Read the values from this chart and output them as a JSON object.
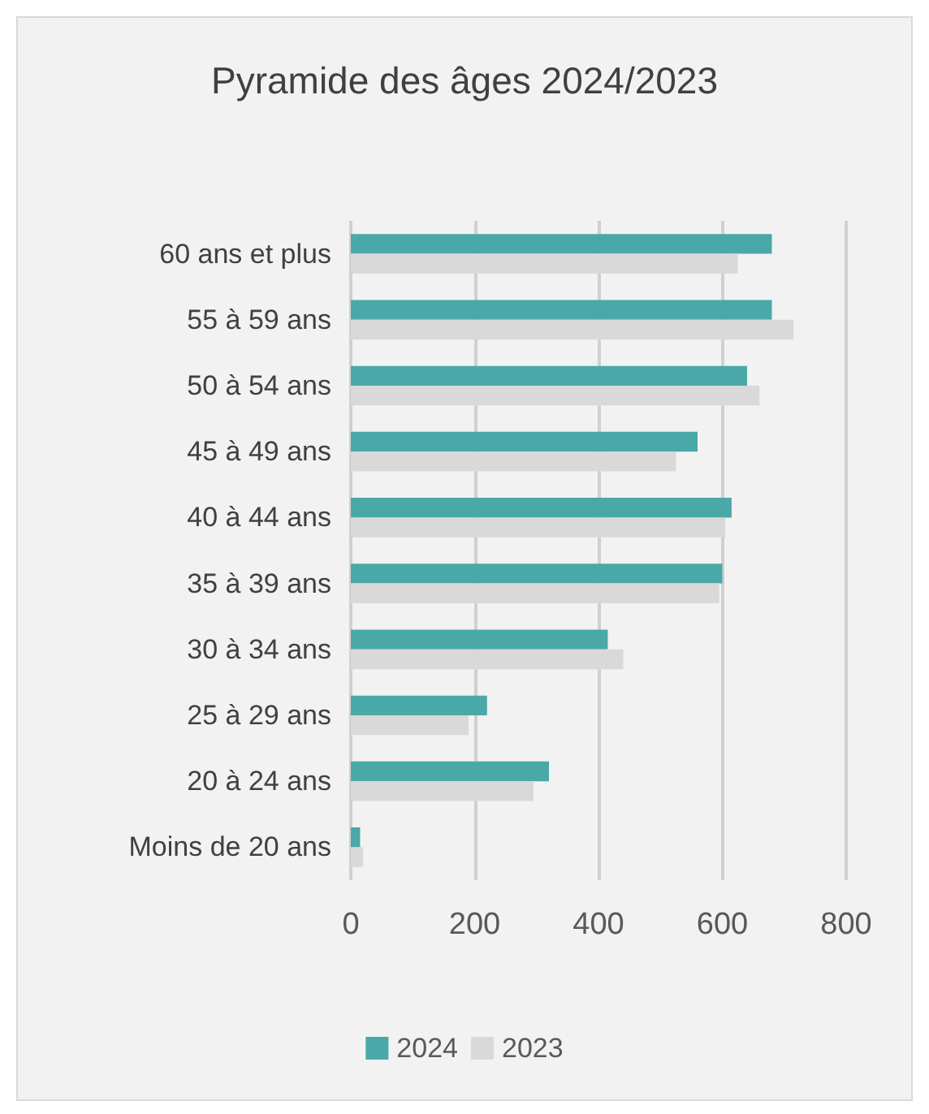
{
  "chart_data": {
    "type": "bar",
    "orientation": "horizontal",
    "title": "Pyramide des âges 2024/2023",
    "categories": [
      "60 ans et plus",
      "55 à 59 ans",
      "50 à 54 ans",
      "45 à 49 ans",
      "40 à 44 ans",
      "35 à 39 ans",
      "30 à 34 ans",
      "25 à 29 ans",
      "20 à 24 ans",
      "Moins de 20 ans"
    ],
    "series": [
      {
        "name": "2024",
        "color": "#4aa8a8",
        "values": [
          680,
          680,
          640,
          560,
          615,
          600,
          415,
          220,
          320,
          15
        ]
      },
      {
        "name": "2023",
        "color": "#d9d9d9",
        "values": [
          625,
          715,
          660,
          525,
          605,
          595,
          440,
          190,
          295,
          20
        ]
      }
    ],
    "xlim": [
      0,
      800
    ],
    "xticks": [
      0,
      200,
      400,
      600,
      800
    ],
    "grid": "x",
    "legend": "bottom"
  }
}
